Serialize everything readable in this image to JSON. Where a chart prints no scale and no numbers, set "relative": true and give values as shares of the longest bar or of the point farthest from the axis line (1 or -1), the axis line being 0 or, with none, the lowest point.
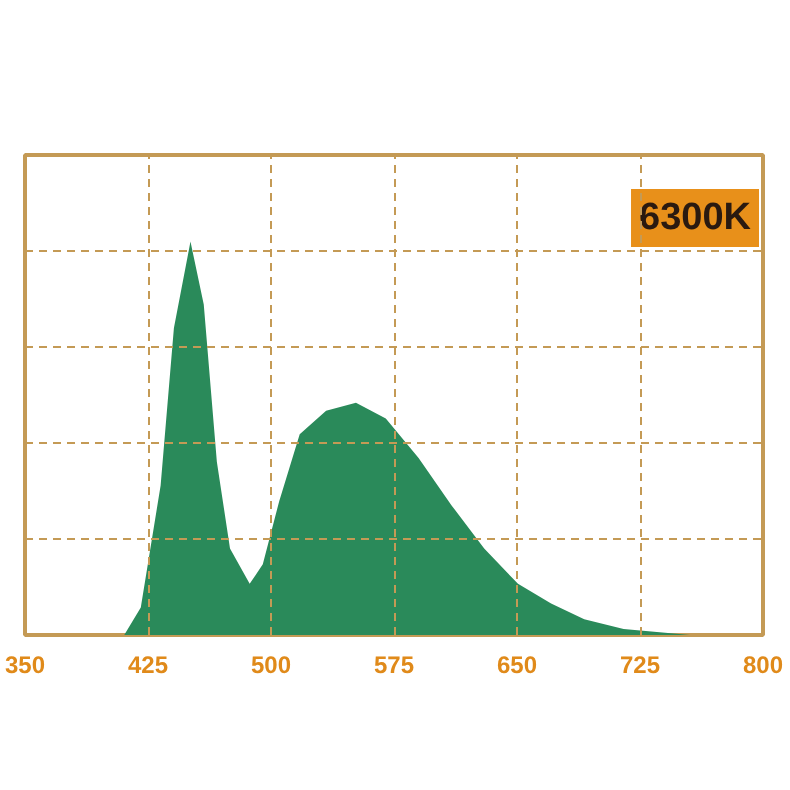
{
  "chart_data": {
    "type": "area",
    "relative": true,
    "x": [
      410.5,
      420.6,
      432.7,
      440.8,
      450.9,
      459,
      467,
      475,
      487,
      495,
      505,
      517.5,
      533.6,
      551.8,
      570,
      590,
      610,
      630,
      650.6,
      670.8,
      691,
      715,
      755.6
    ],
    "series": [
      {
        "color": "#2a8a5a",
        "values": [
          0,
          0.07,
          0.38,
          0.78,
          1.0,
          0.84,
          0.44,
          0.22,
          0.13,
          0.18,
          0.34,
          0.51,
          0.57,
          0.59,
          0.55,
          0.45,
          0.33,
          0.22,
          0.13,
          0.08,
          0.04,
          0.015,
          0
        ]
      }
    ],
    "xlim": [
      350,
      800
    ],
    "xticks": [
      350,
      425,
      500,
      575,
      650,
      725,
      800
    ],
    "grid": true,
    "annotations": [
      "6300K"
    ]
  }
}
